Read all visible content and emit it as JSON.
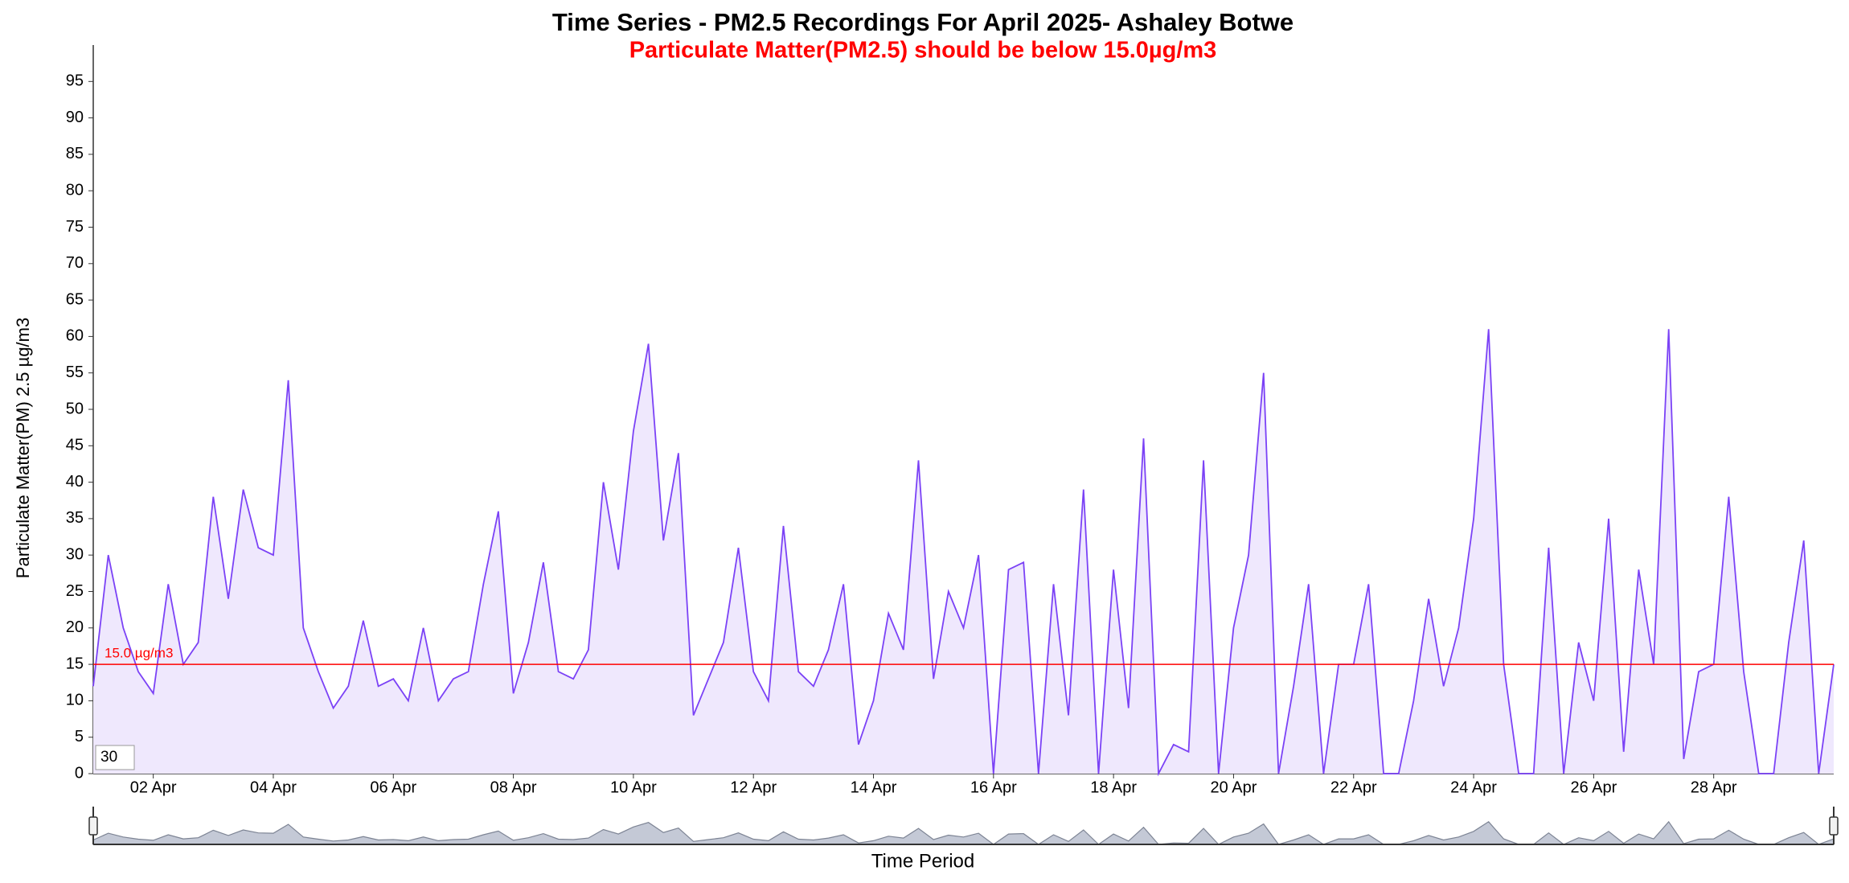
{
  "chart_data": {
    "type": "area",
    "title": "Time Series - PM2.5 Recordings For April 2025- Ashaley Botwe",
    "subtitle": "Particulate Matter(PM2.5) should be below 15.0µg/m3",
    "y_label": "Particulate Matter(PM) 2.5 µg/m3",
    "x_label": "Time Period",
    "zoom_input": "30",
    "color": "#7b42f6",
    "fill": "#efe8fd",
    "threshold": 15,
    "threshold_label": "15.0 µg/m3",
    "threshold_color": "#ff0000",
    "xlim": [
      1,
      30
    ],
    "ylim": [
      0,
      100
    ],
    "yticks": [
      0,
      5,
      10,
      15,
      20,
      25,
      30,
      35,
      40,
      45,
      50,
      55,
      60,
      65,
      70,
      75,
      80,
      85,
      90,
      95
    ],
    "xticks": [
      {
        "value": 2,
        "label": "02 Apr"
      },
      {
        "value": 4,
        "label": "04 Apr"
      },
      {
        "value": 6,
        "label": "06 Apr"
      },
      {
        "value": 8,
        "label": "08 Apr"
      },
      {
        "value": 10,
        "label": "10 Apr"
      },
      {
        "value": 12,
        "label": "12 Apr"
      },
      {
        "value": 14,
        "label": "14 Apr"
      },
      {
        "value": 16,
        "label": "16 Apr"
      },
      {
        "value": 18,
        "label": "18 Apr"
      },
      {
        "value": 20,
        "label": "20 Apr"
      },
      {
        "value": 22,
        "label": "22 Apr"
      },
      {
        "value": 24,
        "label": "24 Apr"
      },
      {
        "value": 26,
        "label": "26 Apr"
      },
      {
        "value": 28,
        "label": "28 Apr"
      }
    ],
    "x": [
      1,
      1.25,
      1.5,
      1.75,
      2,
      2.25,
      2.5,
      2.75,
      3,
      3.25,
      3.5,
      3.75,
      4,
      4.25,
      4.5,
      4.75,
      5,
      5.25,
      5.5,
      5.75,
      6,
      6.25,
      6.5,
      6.75,
      7,
      7.25,
      7.5,
      7.75,
      8,
      8.25,
      8.5,
      8.75,
      9,
      9.25,
      9.5,
      9.75,
      10,
      10.25,
      10.5,
      10.75,
      11,
      11.25,
      11.5,
      11.75,
      12,
      12.25,
      12.5,
      12.75,
      13,
      13.25,
      13.5,
      13.75,
      14,
      14.25,
      14.5,
      14.75,
      15,
      15.25,
      15.5,
      15.75,
      16,
      16.25,
      16.5,
      16.75,
      17,
      17.25,
      17.5,
      17.75,
      18,
      18.25,
      18.5,
      18.75,
      19,
      19.25,
      19.5,
      19.75,
      20,
      20.25,
      20.5,
      20.75,
      21,
      21.25,
      21.5,
      21.75,
      22,
      22.25,
      22.5,
      22.75,
      23,
      23.25,
      23.5,
      23.75,
      24,
      24.25,
      24.5,
      24.75,
      25,
      25.25,
      25.5,
      25.75,
      26,
      26.25,
      26.5,
      26.75,
      27,
      27.25,
      27.5,
      27.75,
      28,
      28.25,
      28.5,
      28.75,
      29,
      29.25,
      29.5,
      29.75,
      30
    ],
    "values": [
      12,
      30,
      20,
      14,
      11,
      26,
      15,
      18,
      38,
      24,
      39,
      31,
      30,
      54,
      20,
      14,
      9,
      12,
      21,
      12,
      13,
      10,
      20,
      10,
      13,
      14,
      26,
      36,
      11,
      18,
      29,
      14,
      13,
      17,
      40,
      28,
      47,
      59,
      32,
      44,
      8,
      13,
      18,
      31,
      14,
      10,
      34,
      14,
      12,
      17,
      26,
      4,
      10,
      22,
      17,
      43,
      13,
      25,
      20,
      30,
      0,
      28,
      29,
      0,
      26,
      8,
      39,
      0,
      28,
      9,
      46,
      0,
      4,
      3,
      43,
      0,
      20,
      30,
      55,
      0,
      12,
      26,
      0,
      15,
      15,
      26,
      0,
      0,
      10,
      24,
      12,
      20,
      35,
      61,
      15,
      0,
      0,
      31,
      0,
      18,
      10,
      35,
      3,
      28,
      15,
      61,
      2,
      14,
      15,
      38,
      14,
      0,
      0,
      18,
      32,
      0,
      15
    ]
  }
}
